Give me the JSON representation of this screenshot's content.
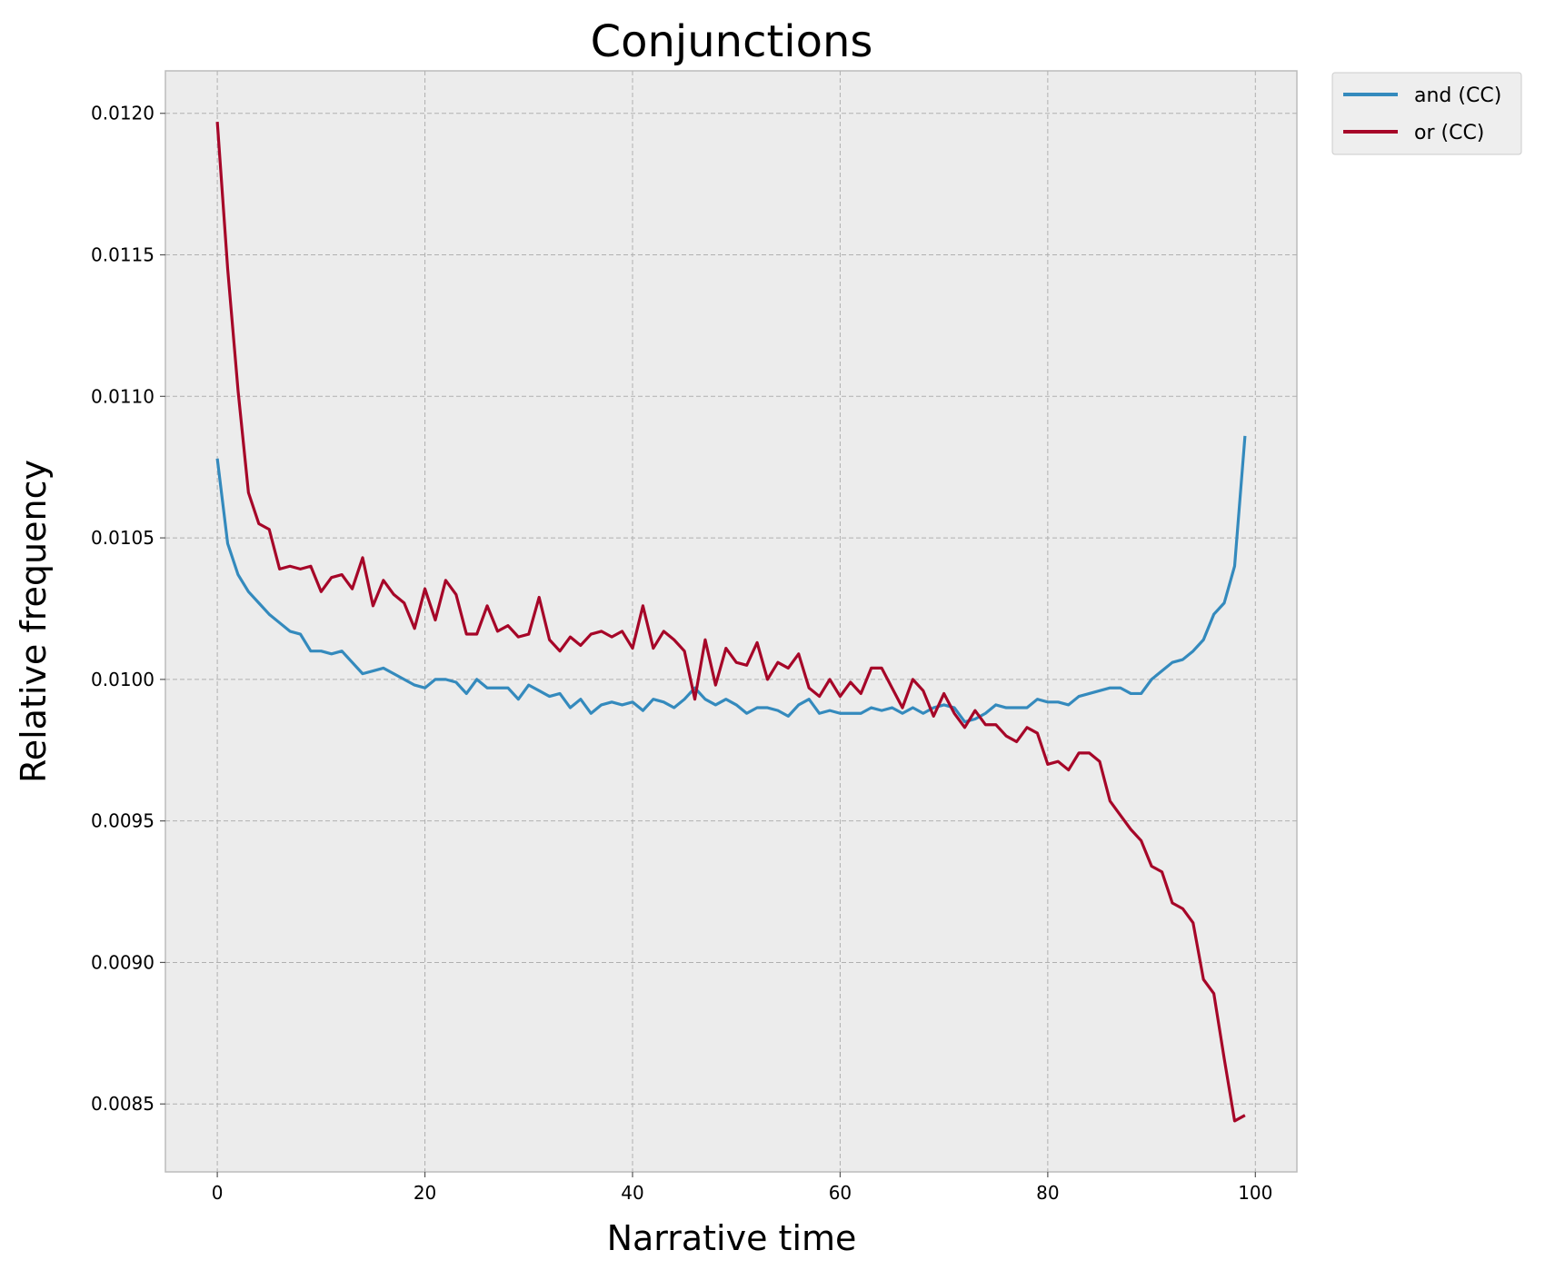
{
  "chart_data": {
    "type": "line",
    "title": "Conjunctions",
    "xlabel": "Narrative time",
    "ylabel": "Relative frequency",
    "xlim": [
      -5,
      104
    ],
    "ylim": [
      0.00826,
      0.01215
    ],
    "xticks": [
      0,
      20,
      40,
      60,
      80,
      100
    ],
    "yticks": [
      0.0085,
      0.009,
      0.0095,
      0.01,
      0.0105,
      0.011,
      0.0115,
      0.012
    ],
    "xtick_labels": [
      "0",
      "20",
      "40",
      "60",
      "80",
      "100"
    ],
    "ytick_labels": [
      "0.0085",
      "0.0090",
      "0.0095",
      "0.0100",
      "0.0105",
      "0.0110",
      "0.0115",
      "0.0120"
    ],
    "grid": true,
    "legend_position": "outside-top-right",
    "background_color": "#ececec",
    "series": [
      {
        "name": "and (CC)",
        "color": "#348abd",
        "values": [
          0.01078,
          0.01048,
          0.01037,
          0.01031,
          0.01027,
          0.01023,
          0.0102,
          0.01017,
          0.01016,
          0.0101,
          0.0101,
          0.01009,
          0.0101,
          0.01006,
          0.01002,
          0.01003,
          0.01004,
          0.01002,
          0.01,
          0.00998,
          0.00997,
          0.01,
          0.01,
          0.00999,
          0.00995,
          0.01,
          0.00997,
          0.00997,
          0.00997,
          0.00993,
          0.00998,
          0.00996,
          0.00994,
          0.00995,
          0.0099,
          0.00993,
          0.00988,
          0.00991,
          0.00992,
          0.00991,
          0.00992,
          0.00989,
          0.00993,
          0.00992,
          0.0099,
          0.00993,
          0.00997,
          0.00993,
          0.00991,
          0.00993,
          0.00991,
          0.00988,
          0.0099,
          0.0099,
          0.00989,
          0.00987,
          0.00991,
          0.00993,
          0.00988,
          0.00989,
          0.00988,
          0.00988,
          0.00988,
          0.0099,
          0.00989,
          0.0099,
          0.00988,
          0.0099,
          0.00988,
          0.0099,
          0.00991,
          0.0099,
          0.00985,
          0.00986,
          0.00988,
          0.00991,
          0.0099,
          0.0099,
          0.0099,
          0.00993,
          0.00992,
          0.00992,
          0.00991,
          0.00994,
          0.00995,
          0.00996,
          0.00997,
          0.00997,
          0.00995,
          0.00995,
          0.01,
          0.01003,
          0.01006,
          0.01007,
          0.0101,
          0.01014,
          0.01023,
          0.01027,
          0.0104,
          0.01086
        ]
      },
      {
        "name": "or (CC)",
        "color": "#a60628",
        "values": [
          0.01197,
          0.01145,
          0.01102,
          0.01066,
          0.01055,
          0.01053,
          0.01039,
          0.0104,
          0.01039,
          0.0104,
          0.01031,
          0.01036,
          0.01037,
          0.01032,
          0.01043,
          0.01026,
          0.01035,
          0.0103,
          0.01027,
          0.01018,
          0.01032,
          0.01021,
          0.01035,
          0.0103,
          0.01016,
          0.01016,
          0.01026,
          0.01017,
          0.01019,
          0.01015,
          0.01016,
          0.01029,
          0.01014,
          0.0101,
          0.01015,
          0.01012,
          0.01016,
          0.01017,
          0.01015,
          0.01017,
          0.01011,
          0.01026,
          0.01011,
          0.01017,
          0.01014,
          0.0101,
          0.00993,
          0.01014,
          0.00998,
          0.01011,
          0.01006,
          0.01005,
          0.01013,
          0.01,
          0.01006,
          0.01004,
          0.01009,
          0.00997,
          0.00994,
          0.01,
          0.00994,
          0.00999,
          0.00995,
          0.01004,
          0.01004,
          0.00997,
          0.0099,
          0.01,
          0.00996,
          0.00987,
          0.00995,
          0.00988,
          0.00983,
          0.00989,
          0.00984,
          0.00984,
          0.0098,
          0.00978,
          0.00983,
          0.00981,
          0.0097,
          0.00971,
          0.00968,
          0.00974,
          0.00974,
          0.00971,
          0.00957,
          0.00952,
          0.00947,
          0.00943,
          0.00934,
          0.00932,
          0.00921,
          0.00919,
          0.00914,
          0.00894,
          0.00889,
          0.00866,
          0.00844,
          0.00846
        ]
      }
    ]
  }
}
